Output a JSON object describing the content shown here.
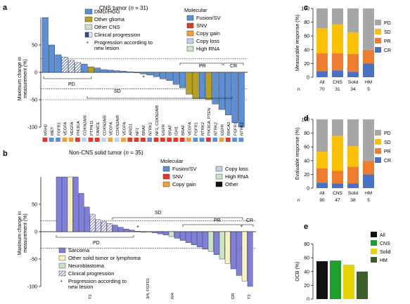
{
  "panels": {
    "a": {
      "letter": "a",
      "title_prefix": "CNS tumor (",
      "title_n": "n",
      "title_suffix": " = 31)",
      "ylabel": [
        "Maximum change in",
        "measurement (%)"
      ],
      "yticks": [
        50,
        0,
        -50,
        -100
      ],
      "ylim": [
        -100,
        100
      ],
      "bars": [
        100,
        50,
        32,
        28,
        22,
        18,
        15,
        10,
        8,
        5,
        4,
        3,
        2,
        1,
        -1,
        -3,
        -5,
        -8,
        -12,
        -15,
        -22,
        -28,
        -40,
        -48,
        -48,
        -50,
        -58,
        -68,
        -78,
        -92,
        -100
      ],
      "bar_colors": [
        "#5b8fd8",
        "#5b8fd8",
        "#5b8fd8",
        "#5b8fd8",
        "#5b8fd8",
        "#5b8fd8",
        "#5b8fd8",
        "#b8a11f",
        "#5b8fd8",
        "#5b8fd8",
        "#5b8fd8",
        "#5b8fd8",
        "#5b8fd8",
        "#5b8fd8",
        "#5b8fd8",
        "#5b8fd8",
        "#5b8fd8",
        "#5b8fd8",
        "#5b8fd8",
        "#5b8fd8",
        "#5b8fd8",
        "#5b8fd8",
        "#b8a11f",
        "#b8a11f",
        "#5b8fd8",
        "#b8a11f",
        "#5b8fd8",
        "#5b8fd8",
        "#5b8fd8",
        "#5b8fd8",
        "#5b8fd8"
      ],
      "hatched": [
        3,
        4,
        5
      ],
      "star_index": 15,
      "gene_labels": [
        "MSH2",
        "MET",
        "FGFR1",
        "VEGFA",
        "VEGFA",
        "PIK3CA",
        "CDKN2A/B",
        "PTPN11",
        "FANCE",
        "CDKN2A/B",
        "VEGFA",
        "CDKN2A/B",
        "VEGFA",
        "ARID1",
        "NF1",
        "BRAF",
        "NTRK2",
        "NF1, CDKN2A/B",
        "EGFR",
        "BRAF",
        "IDH1",
        "BRAF",
        "VEGFA",
        "FGFR1",
        "NTRK2",
        "PIK3CA, PTEN",
        "NTRK2",
        "EGFR",
        "BRCA2",
        "FGFR1",
        "NTRK2"
      ],
      "mol_colors": [
        "#e23a2a",
        "#5b8fd8",
        "#5b8fd8",
        "#f2a03c",
        "#f2a03c",
        "#e23a2a",
        "#bfd4e8",
        "#e23a2a",
        "#e23a2a",
        "#bfd4e8",
        "#f2a03c",
        "#bfd4e8",
        "#f2a03c",
        "#e23a2a",
        "#e23a2a",
        "#e23a2a",
        "#5b8fd8",
        "#e23a2a",
        "#e23a2a",
        "#e23a2a",
        "#e23a2a",
        "#e23a2a",
        "#f2a03c",
        "#5b8fd8",
        "#5b8fd8",
        "#e23a2a",
        "#5b8fd8",
        "#f2a03c",
        "#e23a2a",
        "#5b8fd8",
        "#5b8fd8"
      ],
      "refs": [
        25,
        -30,
        -50
      ],
      "groups": {
        "pd": "PD",
        "sd": "SD",
        "pr": "PR",
        "cr": "CR"
      },
      "legend_tumor": [
        {
          "label": "DMG/HGG",
          "color": "#5b8fd8"
        },
        {
          "label": "Other glioma",
          "color": "#b8a11f"
        },
        {
          "label": "Other CNS",
          "color": "#c9e6c4"
        },
        {
          "label": "Clinical progression",
          "color": "#5b8fd8"
        }
      ],
      "legend_star": "Progression according to",
      "legend_star2": "new lesion",
      "legend_mol_title": "Molecular",
      "legend_mol": [
        {
          "label": "Fusion/SV",
          "color": "#5b8fd8"
        },
        {
          "label": "SNV",
          "color": "#e23a2a"
        },
        {
          "label": "Copy gain",
          "color": "#f2a03c"
        },
        {
          "label": "Copy loss",
          "color": "#bfd4e8"
        },
        {
          "label": "High RNA",
          "color": "#c9e6c4"
        }
      ]
    },
    "b": {
      "letter": "b",
      "title_prefix": "Non-CNS solid tumor (",
      "title_n": "n",
      "title_suffix": " = 35)",
      "ylabel": [
        "Maximum change in",
        "measurement (%)"
      ],
      "yticks": [
        50,
        0,
        -50,
        -100
      ],
      "ylim": [
        -100,
        100
      ],
      "bars": [
        100,
        100,
        100,
        100,
        70,
        45,
        32,
        22,
        18,
        15,
        12,
        8,
        5,
        3,
        1,
        0,
        -1,
        -2,
        -4,
        -6,
        -9,
        -12,
        -16,
        -20,
        -24,
        -28,
        -32,
        -36,
        -42,
        -50,
        -58,
        -68,
        -80,
        -90,
        -100
      ],
      "bar_colors": [
        "#7f7fd8",
        "#7f7fd8",
        "#f4f1c4",
        "#7f7fd8",
        "#7f7fd8",
        "#7f7fd8",
        "#7f7fd8",
        "#7f7fd8",
        "#7f7fd8",
        "#7f7fd8",
        "#7f7fd8",
        "#7f7fd8",
        "#7f7fd8",
        "#7f7fd8",
        "#7f7fd8",
        "#7f7fd8",
        "#f4f1c4",
        "#7f7fd8",
        "#7f7fd8",
        "#7f7fd8",
        "#c9e6c4",
        "#7f7fd8",
        "#7f7fd8",
        "#7f7fd8",
        "#7f7fd8",
        "#7f7fd8",
        "#7f7fd8",
        "#c9e6c4",
        "#7f7fd8",
        "#c9e6c4",
        "#f4f1c4",
        "#7f7fd8",
        "#7f7fd8",
        "#f4f1c4",
        "#7f7fd8"
      ],
      "hatched": [
        6,
        7,
        8,
        9
      ],
      "star_index": 14,
      "refs": [
        20,
        -30
      ],
      "groups": {
        "pd": "PD",
        "sd": "SD",
        "pr": "PR",
        "cr": "CR"
      },
      "bottom_labels": [
        "T2",
        "3/4, FGFR1",
        "R/4",
        "GR",
        "T2"
      ],
      "legend_tumor": [
        {
          "label": "Sarcoma",
          "color": "#7f7fd8"
        },
        {
          "label": "Other solid tumor or lymphoma",
          "color": "#f4f1c4"
        },
        {
          "label": "Neuroblastoma",
          "color": "#c9e6c4"
        },
        {
          "label": "Clinical progression",
          "color": "#7f7fd8"
        }
      ],
      "legend_star": "Progression according to",
      "legend_star2": "new lesion",
      "legend_mol_title": "Molecular",
      "legend_mol": [
        {
          "label": "Fusion/SV",
          "color": "#5b8fd8"
        },
        {
          "label": "Copy loss",
          "color": "#bfd4e8"
        },
        {
          "label": "SNV",
          "color": "#e23a2a"
        },
        {
          "label": "High RNA",
          "color": "#c9e6c4"
        },
        {
          "label": "Copy gain",
          "color": "#f2a03c"
        },
        {
          "label": "Other",
          "color": "#111111"
        }
      ]
    },
    "c": {
      "letter": "c",
      "ylabel": "Measurable response (%)",
      "yticks": [
        0,
        20,
        40,
        60,
        80,
        100
      ],
      "ylim": [
        0,
        100
      ],
      "categories": [
        "All",
        "CNS",
        "Solid",
        "HM"
      ],
      "n_label": "n",
      "n_values": [
        "70",
        "31",
        "34",
        "5"
      ],
      "stacks": [
        {
          "name": "CR",
          "color": "#4a72c4",
          "values": [
            9,
            10,
            8,
            20
          ]
        },
        {
          "name": "PR",
          "color": "#ee7d30",
          "values": [
            26,
            25,
            26,
            20
          ]
        },
        {
          "name": "SD",
          "color": "#ffc000",
          "values": [
            36,
            42,
            31,
            0
          ]
        },
        {
          "name": "PD",
          "color": "#a6a6a6",
          "values": [
            29,
            23,
            35,
            60
          ]
        }
      ],
      "legend": [
        "PD",
        "SD",
        "PR",
        "CR"
      ]
    },
    "d": {
      "letter": "d",
      "ylabel": "Evaluable response (%)",
      "yticks": [
        0,
        20,
        40,
        60,
        80,
        100
      ],
      "ylim": [
        0,
        100
      ],
      "categories": [
        "All",
        "CNS",
        "Solid",
        "HM"
      ],
      "n_label": "n",
      "n_values": [
        "90",
        "47",
        "38",
        "5"
      ],
      "stacks": [
        {
          "name": "CR",
          "color": "#4a72c4",
          "values": [
            8,
            7,
            7,
            20
          ]
        },
        {
          "name": "PR",
          "color": "#ee7d30",
          "values": [
            21,
            18,
            24,
            20
          ]
        },
        {
          "name": "SD",
          "color": "#ffc000",
          "values": [
            24,
            51,
            30,
            0
          ]
        },
        {
          "name": "PD",
          "color": "#a6a6a6",
          "values": [
            47,
            24,
            39,
            60
          ]
        }
      ],
      "legend": [
        "PD",
        "SD",
        "PR",
        "CR"
      ]
    },
    "e": {
      "letter": "e",
      "ylabel": "OCB (%)",
      "yticks": [
        0,
        20,
        40,
        60,
        80,
        100
      ],
      "ylim": [
        0,
        100
      ],
      "series": [
        {
          "name": "All",
          "color": "#111111",
          "value": 55
        },
        {
          "name": "CNS",
          "color": "#1e9e2a",
          "value": 56
        },
        {
          "name": "Solid",
          "color": "#e7d400",
          "value": 50
        },
        {
          "name": "HM",
          "color": "#3b5e2b",
          "value": 40
        }
      ]
    }
  },
  "chart_data": [
    {
      "type": "bar",
      "title": "CNS tumor (n = 31)",
      "ylabel": "Maximum change in measurement (%)",
      "ylim": [
        -100,
        100
      ],
      "categories": [
        "MSH2",
        "MET",
        "FGFR1",
        "VEGFA",
        "VEGFA",
        "PIK3CA",
        "CDKN2A/B",
        "PTPN11",
        "FANCE",
        "CDKN2A/B",
        "VEGFA",
        "CDKN2A/B",
        "VEGFA",
        "ARID1",
        "NF1",
        "BRAF",
        "NTRK2",
        "NF1, CDKN2A/B",
        "EGFR",
        "BRAF",
        "IDH1",
        "BRAF",
        "VEGFA",
        "FGFR1",
        "NTRK2",
        "PIK3CA, PTEN",
        "NTRK2",
        "EGFR",
        "BRCA2",
        "FGFR1",
        "NTRK2"
      ],
      "values": [
        100,
        50,
        32,
        28,
        22,
        18,
        15,
        10,
        8,
        5,
        4,
        3,
        2,
        1,
        -1,
        -3,
        -5,
        -8,
        -12,
        -15,
        -22,
        -28,
        -40,
        -48,
        -48,
        -50,
        -58,
        -68,
        -78,
        -92,
        -100
      ],
      "legend": [
        "DMG/HGG",
        "Other glioma",
        "Other CNS",
        "Clinical progression"
      ]
    },
    {
      "type": "bar",
      "title": "Non-CNS solid tumor (n = 35)",
      "ylabel": "Maximum change in measurement (%)",
      "ylim": [
        -100,
        100
      ],
      "values": [
        100,
        100,
        100,
        100,
        70,
        45,
        32,
        22,
        18,
        15,
        12,
        8,
        5,
        3,
        1,
        0,
        -1,
        -2,
        -4,
        -6,
        -9,
        -12,
        -16,
        -20,
        -24,
        -28,
        -32,
        -36,
        -42,
        -50,
        -58,
        -68,
        -80,
        -90,
        -100
      ],
      "legend": [
        "Sarcoma",
        "Other solid tumor or lymphoma",
        "Neuroblastoma",
        "Clinical progression"
      ]
    },
    {
      "type": "bar",
      "ylabel": "Measurable response (%)",
      "categories": [
        "All",
        "CNS",
        "Solid",
        "HM"
      ],
      "ylim": [
        0,
        100
      ],
      "series": [
        {
          "name": "CR",
          "values": [
            9,
            10,
            8,
            20
          ]
        },
        {
          "name": "PR",
          "values": [
            26,
            25,
            26,
            20
          ]
        },
        {
          "name": "SD",
          "values": [
            36,
            42,
            31,
            0
          ]
        },
        {
          "name": "PD",
          "values": [
            29,
            23,
            35,
            60
          ]
        }
      ]
    },
    {
      "type": "bar",
      "ylabel": "Evaluable response (%)",
      "categories": [
        "All",
        "CNS",
        "Solid",
        "HM"
      ],
      "ylim": [
        0,
        100
      ],
      "series": [
        {
          "name": "CR",
          "values": [
            8,
            7,
            7,
            20
          ]
        },
        {
          "name": "PR",
          "values": [
            21,
            18,
            24,
            20
          ]
        },
        {
          "name": "SD",
          "values": [
            24,
            51,
            30,
            0
          ]
        },
        {
          "name": "PD",
          "values": [
            47,
            24,
            39,
            60
          ]
        }
      ]
    },
    {
      "type": "bar",
      "ylabel": "OCB (%)",
      "categories": [
        "All",
        "CNS",
        "Solid",
        "HM"
      ],
      "ylim": [
        0,
        100
      ],
      "values": [
        55,
        56,
        50,
        40
      ]
    }
  ]
}
